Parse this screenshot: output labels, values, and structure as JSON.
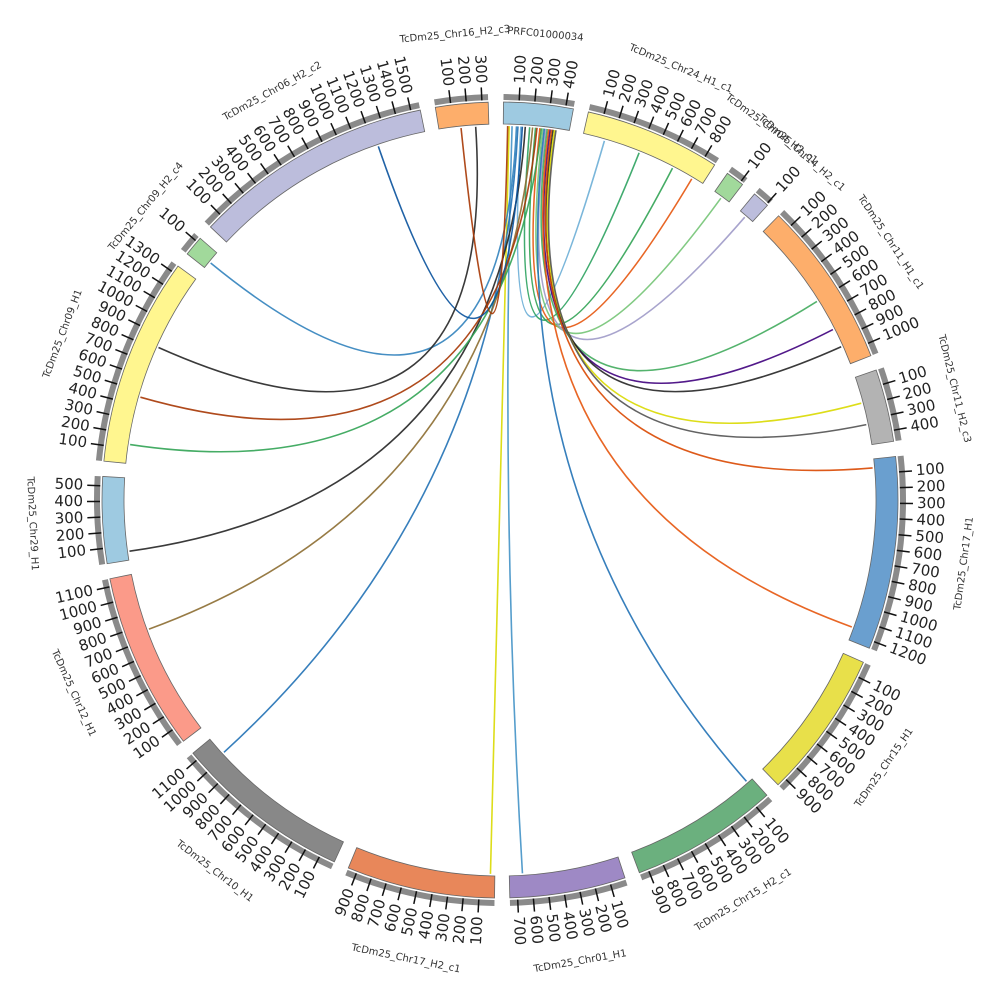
{
  "chart_data": {
    "type": "circos",
    "segments": [
      {
        "name": "PRFC01000034",
        "length": 450,
        "color": "#9ecae1",
        "ticks": [
          100,
          200,
          300,
          400
        ]
      },
      {
        "name": "TcDm25_Chr24_H1_c1",
        "length": 880,
        "color": "#fff68f",
        "ticks": [
          100,
          200,
          300,
          400,
          500,
          600,
          700,
          800
        ]
      },
      {
        "name": "TcDm25_Chr04_H2_c1",
        "length": 120,
        "color": "#a1d99b",
        "ticks": [
          100
        ]
      },
      {
        "name": "TcDm25_Chr14_H2_c1",
        "length": 110,
        "color": "#bcbddc",
        "ticks": [
          100
        ]
      },
      {
        "name": "TcDm25_Chr11_H1_c1",
        "length": 1080,
        "color": "#fdae6b",
        "ticks": [
          100,
          200,
          300,
          400,
          500,
          600,
          700,
          800,
          900,
          1000
        ]
      },
      {
        "name": "TcDm25_Chr11_H2_c3",
        "length": 470,
        "color": "#b3b3b3",
        "ticks": [
          100,
          200,
          300,
          400
        ]
      },
      {
        "name": "TcDm25_Chr17_H1",
        "length": 1250,
        "color": "#6a9fcf",
        "ticks": [
          100,
          200,
          300,
          400,
          500,
          600,
          700,
          800,
          900,
          1000,
          1100,
          1200
        ]
      },
      {
        "name": "TcDm25_Chr15_H1",
        "length": 960,
        "color": "#e8e04a",
        "ticks": [
          100,
          200,
          300,
          400,
          500,
          600,
          700,
          800,
          900
        ]
      },
      {
        "name": "TcDm25_Chr15_H2_c1",
        "length": 960,
        "color": "#6bb07e",
        "ticks": [
          100,
          200,
          300,
          400,
          500,
          600,
          700,
          800,
          900
        ]
      },
      {
        "name": "TcDm25_Chr01_H1",
        "length": 750,
        "color": "#9e89c5",
        "ticks": [
          100,
          200,
          300,
          400,
          500,
          600,
          700
        ]
      },
      {
        "name": "TcDm25_Chr17_H2_c1",
        "length": 960,
        "color": "#e8875a",
        "ticks": [
          100,
          200,
          300,
          400,
          500,
          600,
          700,
          800,
          900
        ]
      },
      {
        "name": "TcDm25_Chr10_H1",
        "length": 1150,
        "color": "#888888",
        "ticks": [
          100,
          200,
          300,
          400,
          500,
          600,
          700,
          800,
          900,
          1000,
          1100
        ]
      },
      {
        "name": "TcDm25_Chr12_H1",
        "length": 1150,
        "color": "#fb9a89",
        "ticks": [
          100,
          200,
          300,
          400,
          500,
          600,
          700,
          800,
          900,
          1000,
          1100
        ]
      },
      {
        "name": "TcDm25_Chr29_H1",
        "length": 560,
        "color": "#9ecae1",
        "ticks": [
          100,
          200,
          300,
          400,
          500
        ]
      },
      {
        "name": "TcDm25_Chr09_H1",
        "length": 1350,
        "color": "#fff68f",
        "ticks": [
          100,
          200,
          300,
          400,
          500,
          600,
          700,
          800,
          900,
          1000,
          1100,
          1200,
          1300
        ]
      },
      {
        "name": "TcDm25_Chr09_H2_c4",
        "length": 130,
        "color": "#a1d99b",
        "ticks": [
          100
        ]
      },
      {
        "name": "TcDm25_Chr06_H2_c2",
        "length": 1560,
        "color": "#bcbddc",
        "ticks": [
          100,
          200,
          300,
          400,
          500,
          600,
          700,
          800,
          900,
          1000,
          1100,
          1200,
          1300,
          1400,
          1500
        ]
      },
      {
        "name": "TcDm25_Chr16_H2_c3",
        "length": 340,
        "color": "#fdae6b",
        "ticks": [
          100,
          200,
          300
        ]
      }
    ],
    "links": [
      {
        "source": [
          0,
          120
        ],
        "target": [
          1,
          150
        ],
        "color": "#6baed6"
      },
      {
        "source": [
          0,
          180
        ],
        "target": [
          1,
          400
        ],
        "color": "#2ca25f"
      },
      {
        "source": [
          0,
          220
        ],
        "target": [
          1,
          650
        ],
        "color": "#31a354"
      },
      {
        "source": [
          0,
          250
        ],
        "target": [
          1,
          800
        ],
        "color": "#e6550d"
      },
      {
        "source": [
          0,
          270
        ],
        "target": [
          2,
          60
        ],
        "color": "#74c476"
      },
      {
        "source": [
          0,
          290
        ],
        "target": [
          3,
          50
        ],
        "color": "#9e9ac8"
      },
      {
        "source": [
          0,
          300
        ],
        "target": [
          4,
          600
        ],
        "color": "#41ab5d"
      },
      {
        "source": [
          0,
          320
        ],
        "target": [
          4,
          820
        ],
        "color": "#3f007d"
      },
      {
        "source": [
          0,
          340
        ],
        "target": [
          4,
          950
        ],
        "color": "#252525"
      },
      {
        "source": [
          0,
          350
        ],
        "target": [
          5,
          180
        ],
        "color": "#d9d900"
      },
      {
        "source": [
          0,
          360
        ],
        "target": [
          5,
          330
        ],
        "color": "#525252"
      },
      {
        "source": [
          0,
          330
        ],
        "target": [
          6,
          60
        ],
        "color": "#d94801"
      },
      {
        "source": [
          0,
          310
        ],
        "target": [
          6,
          1160
        ],
        "color": "#e6550d"
      },
      {
        "source": [
          0,
          280
        ],
        "target": [
          8,
          40
        ],
        "color": "#2171b5"
      },
      {
        "source": [
          0,
          60
        ],
        "target": [
          9,
          660
        ],
        "color": "#4292c6"
      },
      {
        "source": [
          0,
          40
        ],
        "target": [
          10,
          30
        ],
        "color": "#d9d900"
      },
      {
        "source": [
          0,
          100
        ],
        "target": [
          11,
          1020
        ],
        "color": "#2171b5"
      },
      {
        "source": [
          0,
          200
        ],
        "target": [
          12,
          760
        ],
        "color": "#8c6d31"
      },
      {
        "source": [
          0,
          150
        ],
        "target": [
          13,
          60
        ],
        "color": "#252525"
      },
      {
        "source": [
          0,
          230
        ],
        "target": [
          14,
          460
        ],
        "color": "#a63603"
      },
      {
        "source": [
          0,
          260
        ],
        "target": [
          14,
          130
        ],
        "color": "#31a354"
      },
      {
        "source": [
          0,
          90
        ],
        "target": [
          15,
          50
        ],
        "color": "#3182bd"
      },
      {
        "source": [
          0,
          130
        ],
        "target": [
          16,
          1230
        ],
        "color": "#08519c"
      },
      {
        "source": [
          17,
          250
        ],
        "target": [
          14,
          820
        ],
        "color": "#252525"
      },
      {
        "source": [
          17,
          150
        ],
        "target": [
          0,
          30
        ],
        "color": "#a63603"
      }
    ]
  }
}
